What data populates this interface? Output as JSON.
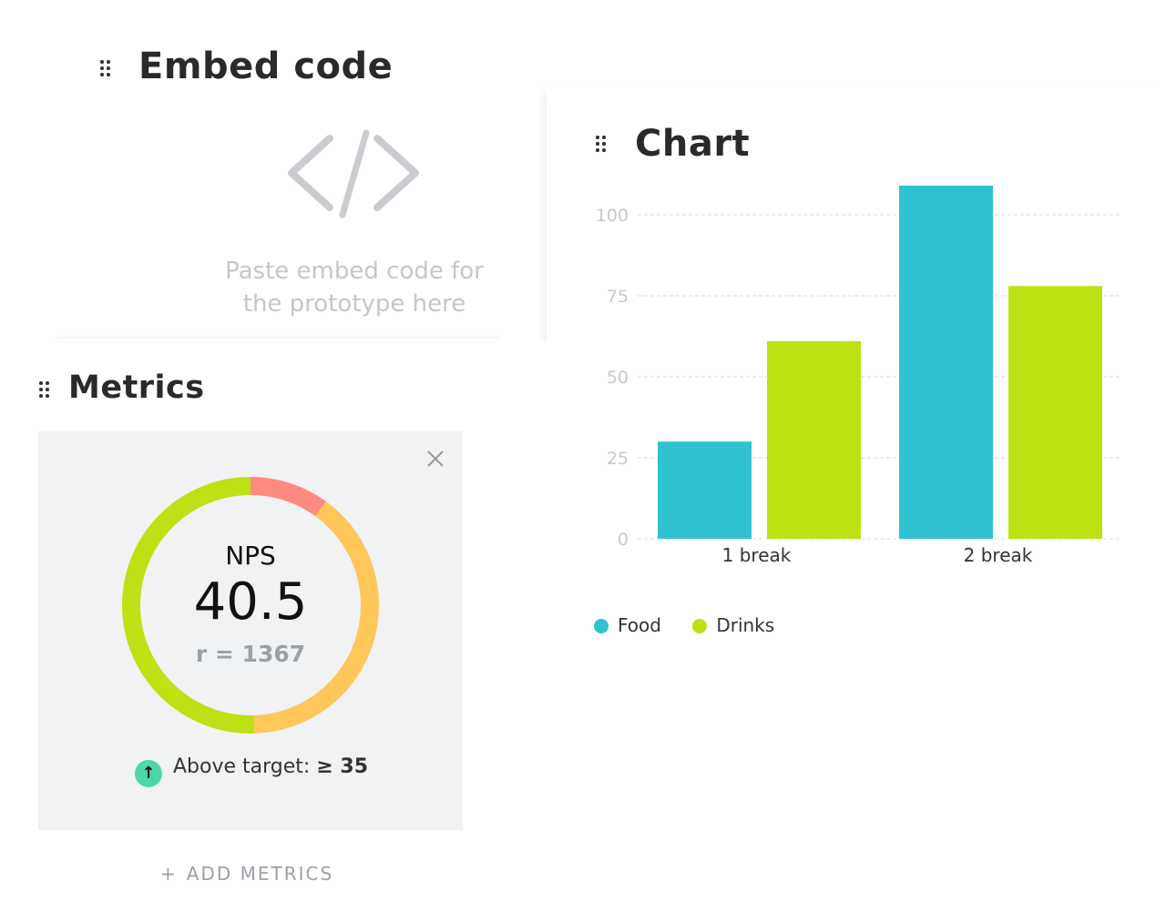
{
  "embed": {
    "title": "Embed code",
    "placeholder_line1": "Paste embed code for",
    "placeholder_line2": "the prototype here"
  },
  "metrics": {
    "title": "Metrics",
    "nps_label": "NPS",
    "nps_value": "40.5",
    "responses": "r = 1367",
    "target_label": "Above target:",
    "target_value": "≥ 35",
    "add_label": "ADD METRICS",
    "add_icon": "+",
    "donut_segments": [
      {
        "name": "detractors",
        "percent": 10,
        "color": "#ff8a80"
      },
      {
        "name": "passives",
        "percent": 39.5,
        "color": "#ffc65a"
      },
      {
        "name": "promoters",
        "percent": 50.5,
        "color": "#bde114"
      }
    ]
  },
  "chart": {
    "title": "Chart"
  },
  "chart_data": {
    "type": "bar",
    "title": "Chart",
    "categories": [
      "1 break",
      "2 break"
    ],
    "series": [
      {
        "name": "Food",
        "color": "#31c2d2",
        "values": [
          30,
          109
        ]
      },
      {
        "name": "Drinks",
        "color": "#bce213",
        "values": [
          61,
          78
        ]
      }
    ],
    "yticks": [
      "0",
      "25",
      "50",
      "75",
      "100"
    ],
    "ylim": [
      0,
      100
    ],
    "grid": true,
    "legend": "bottom-left"
  }
}
